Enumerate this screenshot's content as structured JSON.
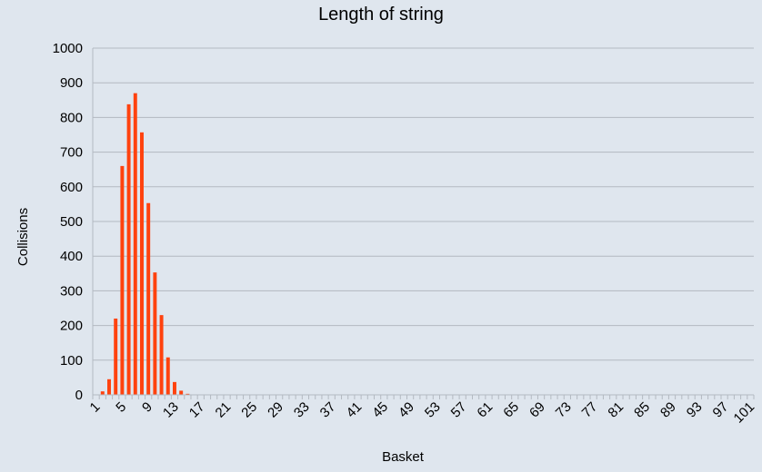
{
  "chart_data": {
    "type": "bar",
    "title": "Length of string",
    "xlabel": "Basket",
    "ylabel": "Collisions",
    "ylim": [
      0,
      1000
    ],
    "yticks": [
      0,
      100,
      200,
      300,
      400,
      500,
      600,
      700,
      800,
      900,
      1000
    ],
    "grid": true,
    "legend": "none",
    "bar_color": "#ff420e",
    "x_tick_label_step": 4,
    "categories": [
      1,
      2,
      3,
      4,
      5,
      6,
      7,
      8,
      9,
      10,
      11,
      12,
      13,
      14,
      15,
      16,
      17,
      18,
      19,
      20,
      21,
      22,
      23,
      24,
      25,
      26,
      27,
      28,
      29,
      30,
      31,
      32,
      33,
      34,
      35,
      36,
      37,
      38,
      39,
      40,
      41,
      42,
      43,
      44,
      45,
      46,
      47,
      48,
      49,
      50,
      51,
      52,
      53,
      54,
      55,
      56,
      57,
      58,
      59,
      60,
      61,
      62,
      63,
      64,
      65,
      66,
      67,
      68,
      69,
      70,
      71,
      72,
      73,
      74,
      75,
      76,
      77,
      78,
      79,
      80,
      81,
      82,
      83,
      84,
      85,
      86,
      87,
      88,
      89,
      90,
      91,
      92,
      93,
      94,
      95,
      96,
      97,
      98,
      99,
      100,
      101
    ],
    "values": [
      0,
      10,
      45,
      220,
      660,
      838,
      870,
      757,
      553,
      353,
      230,
      108,
      37,
      12,
      3,
      1,
      0,
      0,
      0,
      0,
      0,
      0,
      0,
      0,
      0,
      0,
      0,
      0,
      0,
      0,
      0,
      0,
      0,
      0,
      0,
      0,
      0,
      0,
      0,
      0,
      0,
      0,
      0,
      0,
      0,
      0,
      0,
      0,
      0,
      0,
      0,
      0,
      0,
      0,
      0,
      0,
      0,
      0,
      0,
      0,
      0,
      0,
      0,
      0,
      0,
      0,
      0,
      0,
      0,
      0,
      0,
      0,
      0,
      0,
      0,
      0,
      0,
      0,
      0,
      0,
      0,
      0,
      0,
      0,
      0,
      0,
      0,
      0,
      0,
      0,
      0,
      0,
      0,
      0,
      0,
      0,
      0,
      0,
      0,
      0,
      0
    ]
  }
}
